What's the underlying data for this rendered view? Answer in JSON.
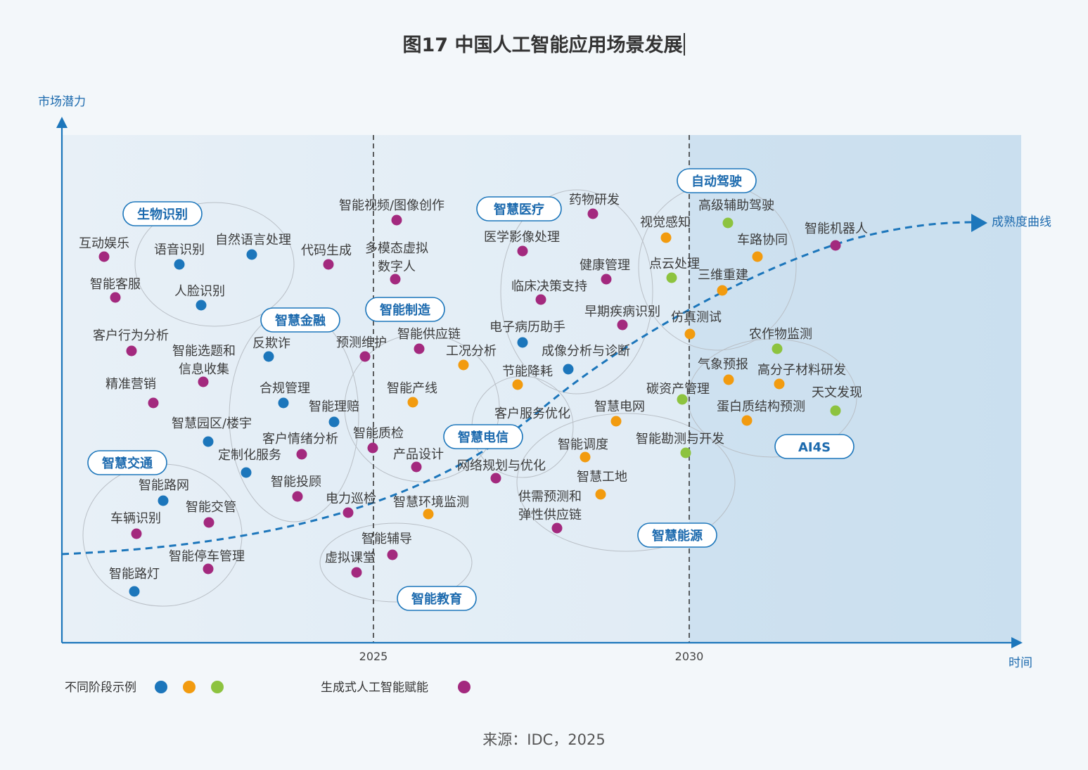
{
  "title": "图17 中国人工智能应用场景发展",
  "axes": {
    "y_label": "市场潜力",
    "x_label": "时间",
    "x_ticks": [
      "2025",
      "2030"
    ]
  },
  "curve_label": "成熟度曲线",
  "colors": {
    "blue": "#1c76bb",
    "orange": "#f29b0f",
    "green": "#8dc33f",
    "purple": "#a3297e",
    "axis": "#1c76bb",
    "tag_text": "#1c6aae"
  },
  "legend": {
    "stage_label": "不同阶段示例",
    "stage_colors": [
      "blue",
      "orange",
      "green"
    ],
    "gen_label": "生成式人工智能赋能",
    "gen_color": "purple"
  },
  "source": "来源：IDC，2025",
  "domains": [
    {
      "name": "生物识别"
    },
    {
      "name": "智慧金融"
    },
    {
      "name": "智慧交通"
    },
    {
      "name": "智能制造"
    },
    {
      "name": "智能教育"
    },
    {
      "name": "智慧医疗"
    },
    {
      "name": "智慧电信"
    },
    {
      "name": "智慧能源"
    },
    {
      "name": "自动驾驶"
    },
    {
      "name": "AI4S"
    }
  ],
  "items": [
    {
      "label": "互动娱乐",
      "color": "purple"
    },
    {
      "label": "语音识别",
      "color": "blue"
    },
    {
      "label": "自然语言处理",
      "color": "blue"
    },
    {
      "label": "代码生成",
      "color": "purple"
    },
    {
      "label": "智能视频/图像创作",
      "color": "purple"
    },
    {
      "label": "多模态虚拟",
      "color": "purple"
    },
    {
      "label": "数字人",
      "color": "purple"
    },
    {
      "label": "智能客服",
      "color": "purple"
    },
    {
      "label": "人脸识别",
      "color": "blue"
    },
    {
      "label": "客户行为分析",
      "color": "purple"
    },
    {
      "label": "智能选题和",
      "color": "purple"
    },
    {
      "label": "信息收集",
      "color": "purple"
    },
    {
      "label": "反欺诈",
      "color": "blue"
    },
    {
      "label": "预测维护",
      "color": "purple"
    },
    {
      "label": "智能供应链",
      "color": "purple"
    },
    {
      "label": "精准营销",
      "color": "purple"
    },
    {
      "label": "合规管理",
      "color": "blue"
    },
    {
      "label": "智能理赔",
      "color": "blue"
    },
    {
      "label": "智能产线",
      "color": "orange"
    },
    {
      "label": "智慧园区/楼宇",
      "color": "blue"
    },
    {
      "label": "客户情绪分析",
      "color": "purple"
    },
    {
      "label": "智能质检",
      "color": "purple"
    },
    {
      "label": "定制化服务",
      "color": "blue"
    },
    {
      "label": "产品设计",
      "color": "purple"
    },
    {
      "label": "智能路网",
      "color": "blue"
    },
    {
      "label": "智能投顾",
      "color": "purple"
    },
    {
      "label": "智能交管",
      "color": "purple"
    },
    {
      "label": "车辆识别",
      "color": "purple"
    },
    {
      "label": "电力巡检",
      "color": "purple"
    },
    {
      "label": "智慧环境监测",
      "color": "orange"
    },
    {
      "label": "智能停车管理",
      "color": "purple"
    },
    {
      "label": "智能路灯",
      "color": "blue"
    },
    {
      "label": "智能辅导",
      "color": "purple"
    },
    {
      "label": "虚拟课堂",
      "color": "purple"
    },
    {
      "label": "药物研发",
      "color": "purple"
    },
    {
      "label": "医学影像处理",
      "color": "purple"
    },
    {
      "label": "健康管理",
      "color": "purple"
    },
    {
      "label": "临床决策支持",
      "color": "purple"
    },
    {
      "label": "早期疾病识别",
      "color": "purple"
    },
    {
      "label": "电子病历助手",
      "color": "blue"
    },
    {
      "label": "工况分析",
      "color": "orange"
    },
    {
      "label": "成像分析与诊断",
      "color": "blue"
    },
    {
      "label": "节能降耗",
      "color": "orange"
    },
    {
      "label": "客户服务优化",
      "color": "orange"
    },
    {
      "label": "智慧电网",
      "color": "orange"
    },
    {
      "label": "网络规划与优化",
      "color": "purple"
    },
    {
      "label": "智能调度",
      "color": "orange"
    },
    {
      "label": "智慧工地",
      "color": "orange"
    },
    {
      "label": "供需预测和",
      "color": "purple"
    },
    {
      "label": "弹性供应链",
      "color": "purple"
    },
    {
      "label": "视觉感知",
      "color": "orange"
    },
    {
      "label": "高级辅助驾驶",
      "color": "green"
    },
    {
      "label": "车路协同",
      "color": "orange"
    },
    {
      "label": "点云处理",
      "color": "green"
    },
    {
      "label": "三维重建",
      "color": "orange"
    },
    {
      "label": "仿真测试",
      "color": "orange"
    },
    {
      "label": "智能机器人",
      "color": "purple"
    },
    {
      "label": "农作物监测",
      "color": "green"
    },
    {
      "label": "气象预报",
      "color": "orange"
    },
    {
      "label": "高分子材料研发",
      "color": "orange"
    },
    {
      "label": "碳资产管理",
      "color": "green"
    },
    {
      "label": "天文发现",
      "color": "green"
    },
    {
      "label": "蛋白质结构预测",
      "color": "orange"
    },
    {
      "label": "智能勘测与开发",
      "color": "green"
    }
  ]
}
